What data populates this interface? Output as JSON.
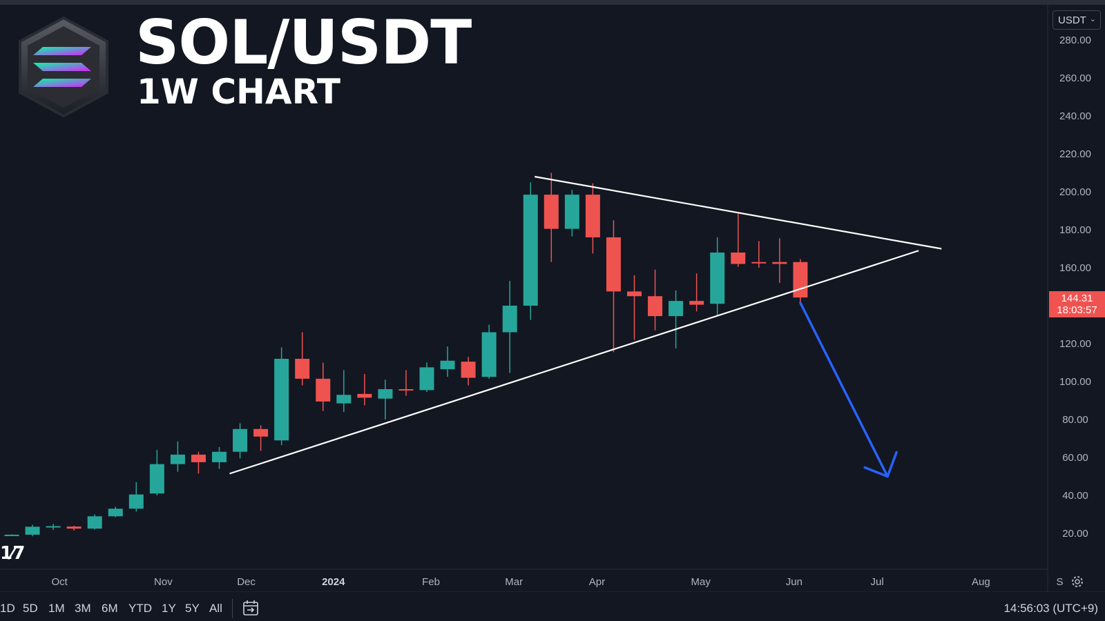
{
  "header": {
    "title": "SOL/USDT",
    "subtitle": "1W CHART"
  },
  "currency_selector": {
    "value": "USDT"
  },
  "price_label": {
    "price": "144.31",
    "countdown": "18:03:57"
  },
  "bottom_bar": {
    "ranges": [
      "1D",
      "5D",
      "1M",
      "3M",
      "6M",
      "YTD",
      "1Y",
      "5Y",
      "All"
    ],
    "clock": "14:56:03 (UTC+9)"
  },
  "colors": {
    "background": "#131722",
    "bull": "#26a69a",
    "bear": "#ef5350",
    "trendline": "#ffffff",
    "arrow": "#2962ff"
  },
  "icons": [
    "solana-logo-icon",
    "tradingview-logo-icon",
    "calendar-goto-icon",
    "settings-gear-icon",
    "chevron-down-icon"
  ],
  "chart_data": {
    "type": "candlestick",
    "ylim": [
      0,
      290
    ],
    "y_ticks": [
      20,
      40,
      60,
      80,
      100,
      120,
      140,
      160,
      180,
      200,
      220,
      240,
      260,
      280
    ],
    "y_tick_labels": [
      "20.00",
      "40.00",
      "60.00",
      "80.00",
      "100.00",
      "120.00",
      "140.00",
      "160.00",
      "180.00",
      "200.00",
      "220.00",
      "240.00",
      "260.00",
      "280.00"
    ],
    "x_ticks": [
      {
        "label": "Oct",
        "week": 2.3
      },
      {
        "label": "Nov",
        "week": 7.3
      },
      {
        "label": "Dec",
        "week": 11.3
      },
      {
        "label": "2024",
        "week": 15.5,
        "bold": true
      },
      {
        "label": "Feb",
        "week": 20.2
      },
      {
        "label": "Mar",
        "week": 24.2
      },
      {
        "label": "Apr",
        "week": 28.2
      },
      {
        "label": "May",
        "week": 33.2
      },
      {
        "label": "Jun",
        "week": 37.7
      },
      {
        "label": "Jul",
        "week": 41.7
      },
      {
        "label": "Aug",
        "week": 46.7
      },
      {
        "label": "S",
        "week": 50.5
      }
    ],
    "candles": [
      {
        "o": 19.0,
        "h": 19.5,
        "l": 18.8,
        "c": 19.3
      },
      {
        "o": 19.3,
        "h": 24.5,
        "l": 18.5,
        "c": 23.5
      },
      {
        "o": 23.2,
        "h": 25.0,
        "l": 21.8,
        "c": 23.8
      },
      {
        "o": 23.6,
        "h": 24.0,
        "l": 21.5,
        "c": 22.5
      },
      {
        "o": 22.5,
        "h": 30.0,
        "l": 22.0,
        "c": 29.0
      },
      {
        "o": 29.0,
        "h": 34.0,
        "l": 28.5,
        "c": 33.0
      },
      {
        "o": 33.0,
        "h": 47.0,
        "l": 31.5,
        "c": 40.5
      },
      {
        "o": 41.0,
        "h": 64.0,
        "l": 40.0,
        "c": 56.5
      },
      {
        "o": 56.5,
        "h": 68.5,
        "l": 52.5,
        "c": 61.5
      },
      {
        "o": 61.5,
        "h": 63.0,
        "l": 51.5,
        "c": 57.5
      },
      {
        "o": 57.5,
        "h": 65.5,
        "l": 54.0,
        "c": 63.0
      },
      {
        "o": 63.0,
        "h": 78.0,
        "l": 59.5,
        "c": 75.0
      },
      {
        "o": 75.0,
        "h": 77.0,
        "l": 63.5,
        "c": 71.0
      },
      {
        "o": 69.0,
        "h": 118.0,
        "l": 66.5,
        "c": 112.0
      },
      {
        "o": 112.0,
        "h": 126.0,
        "l": 98.0,
        "c": 101.5
      },
      {
        "o": 101.5,
        "h": 110.0,
        "l": 84.5,
        "c": 89.5
      },
      {
        "o": 88.5,
        "h": 106.0,
        "l": 84.0,
        "c": 93.0
      },
      {
        "o": 93.5,
        "h": 104.0,
        "l": 87.5,
        "c": 91.5
      },
      {
        "o": 91.0,
        "h": 101.0,
        "l": 80.0,
        "c": 96.0
      },
      {
        "o": 96.0,
        "h": 106.0,
        "l": 92.5,
        "c": 95.5
      },
      {
        "o": 95.5,
        "h": 110.0,
        "l": 94.5,
        "c": 107.5
      },
      {
        "o": 106.5,
        "h": 118.5,
        "l": 102.5,
        "c": 111.0
      },
      {
        "o": 110.5,
        "h": 113.0,
        "l": 98.0,
        "c": 102.0
      },
      {
        "o": 102.5,
        "h": 130.0,
        "l": 101.5,
        "c": 126.0
      },
      {
        "o": 126.0,
        "h": 153.0,
        "l": 104.5,
        "c": 140.0
      },
      {
        "o": 140.0,
        "h": 205.0,
        "l": 132.5,
        "c": 198.5
      },
      {
        "o": 198.5,
        "h": 210.0,
        "l": 163.0,
        "c": 180.5
      },
      {
        "o": 180.5,
        "h": 201.0,
        "l": 176.5,
        "c": 198.5
      },
      {
        "o": 198.5,
        "h": 204.5,
        "l": 167.5,
        "c": 176.0
      },
      {
        "o": 176.0,
        "h": 185.0,
        "l": 115.5,
        "c": 147.5
      },
      {
        "o": 147.5,
        "h": 156.0,
        "l": 122.0,
        "c": 145.0
      },
      {
        "o": 145.0,
        "h": 159.0,
        "l": 127.0,
        "c": 134.5
      },
      {
        "o": 134.5,
        "h": 148.0,
        "l": 117.5,
        "c": 142.5
      },
      {
        "o": 142.5,
        "h": 157.0,
        "l": 137.0,
        "c": 140.5
      },
      {
        "o": 141.0,
        "h": 176.0,
        "l": 134.5,
        "c": 168.0
      },
      {
        "o": 168.0,
        "h": 188.5,
        "l": 160.5,
        "c": 162.0
      },
      {
        "o": 163.0,
        "h": 174.0,
        "l": 160.0,
        "c": 162.5
      },
      {
        "o": 163.0,
        "h": 175.5,
        "l": 152.0,
        "c": 162.0
      },
      {
        "o": 163.0,
        "h": 164.5,
        "l": 140.5,
        "c": 144.31
      }
    ],
    "trendlines": [
      {
        "name": "descending-resistance",
        "from": {
          "week": 25.2,
          "price": 208.0
        },
        "to": {
          "week": 44.8,
          "price": 170.0
        }
      },
      {
        "name": "ascending-support",
        "from": {
          "week": 10.5,
          "price": 51.5
        },
        "to": {
          "week": 43.7,
          "price": 169.0
        }
      }
    ],
    "projection_arrow": {
      "from": {
        "week": 38.0,
        "price": 141.5
      },
      "to": {
        "week": 42.2,
        "price": 50.0
      }
    }
  }
}
